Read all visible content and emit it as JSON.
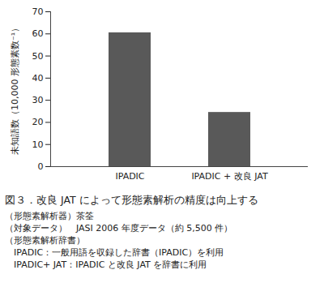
{
  "chart_data": {
    "type": "bar",
    "title": "図３．改良 JAT によって形態素解析の精度は向上する",
    "y_label": "未知語数（10,000 形態素数⁻¹）",
    "categories": [
      "IPADIC",
      "IPADIC + 改良 JAT"
    ],
    "values": [
      60.5,
      24.5
    ],
    "color": "#595959",
    "ylim": [
      0,
      70
    ],
    "yticks": [
      0,
      10,
      20,
      30,
      40,
      50,
      60,
      70
    ],
    "grid": false,
    "annotations": [
      "（形態素解析器）茶筌",
      "（対象データ）　JASI 2006 年度データ（約 5,500 件）",
      "（形態素解析辞書）",
      "　IPADIC：一般用語を収録した辞書（IPADIC）を利用",
      "　IPADIC+ JAT：IPADIC と改良 JAT を辞書に利用"
    ]
  }
}
